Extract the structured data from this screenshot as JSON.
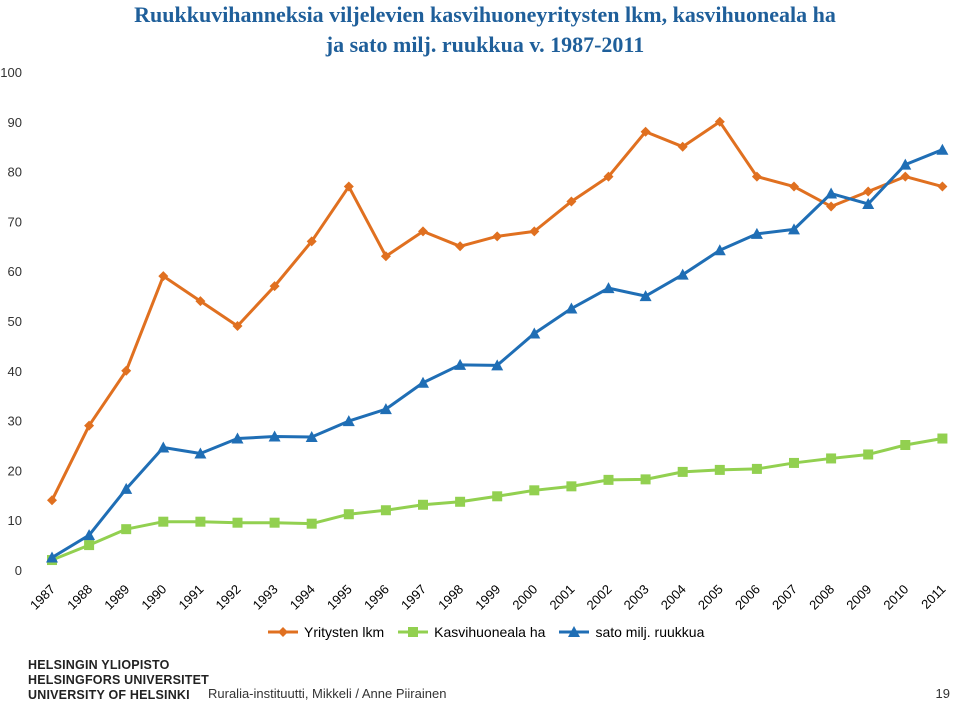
{
  "header": {
    "title_line1": "Ruukkuvihanneksia viljelevien kasvihuoneyritysten lkm, kasvihuoneala ha",
    "title_line2": "ja sato milj. ruukkua v. 1987-2011"
  },
  "chart_data": {
    "type": "line",
    "categories": [
      "1987",
      "1988",
      "1989",
      "1990",
      "1991",
      "1992",
      "1993",
      "1994",
      "1995",
      "1996",
      "1997",
      "1998",
      "1999",
      "2000",
      "2001",
      "2002",
      "2003",
      "2004",
      "2005",
      "2006",
      "2007",
      "2008",
      "2009",
      "2010",
      "2011"
    ],
    "ylim": [
      0,
      100
    ],
    "yticks": [
      "0",
      "10",
      "20",
      "30",
      "40",
      "50",
      "60",
      "70",
      "80",
      "90",
      "100"
    ],
    "series": [
      {
        "name": "Yritysten lkm",
        "color": "#e07020",
        "marker": "diamond",
        "values": [
          14,
          29,
          40,
          59,
          54,
          49,
          57,
          66,
          77,
          63,
          68,
          65,
          67,
          68,
          74,
          79,
          88,
          85,
          90,
          79,
          77,
          73,
          76,
          79,
          77
        ]
      },
      {
        "name": "Kasvihuoneala ha",
        "color": "#92d050",
        "marker": "square",
        "values": [
          2,
          5,
          8.2,
          9.7,
          9.7,
          9.5,
          9.5,
          9.3,
          11.2,
          12,
          13.1,
          13.7,
          14.8,
          16,
          16.8,
          18.1,
          18.2,
          19.7,
          20.1,
          20.3,
          21.5,
          22.4,
          23.2,
          25.1,
          26.4
        ]
      },
      {
        "name": "sato milj. ruukkua",
        "color": "#1f6eb5",
        "marker": "triangle",
        "values": [
          2.5,
          7,
          16.3,
          24.6,
          23.4,
          26.4,
          26.8,
          26.7,
          29.9,
          32.3,
          37.6,
          41.2,
          41.1,
          47.5,
          52.5,
          56.6,
          55,
          59.3,
          64.2,
          67.5,
          68.4,
          75.6,
          73.5,
          81.4,
          84.4
        ]
      }
    ]
  },
  "footer": {
    "logo_line1": "HELSINGIN YLIOPISTO",
    "logo_line2": "HELSINGFORS UNIVERSITET",
    "logo_line3": "UNIVERSITY OF HELSINKI",
    "source": "Ruralia-instituutti, Mikkeli / Anne Piirainen",
    "page": "19"
  }
}
